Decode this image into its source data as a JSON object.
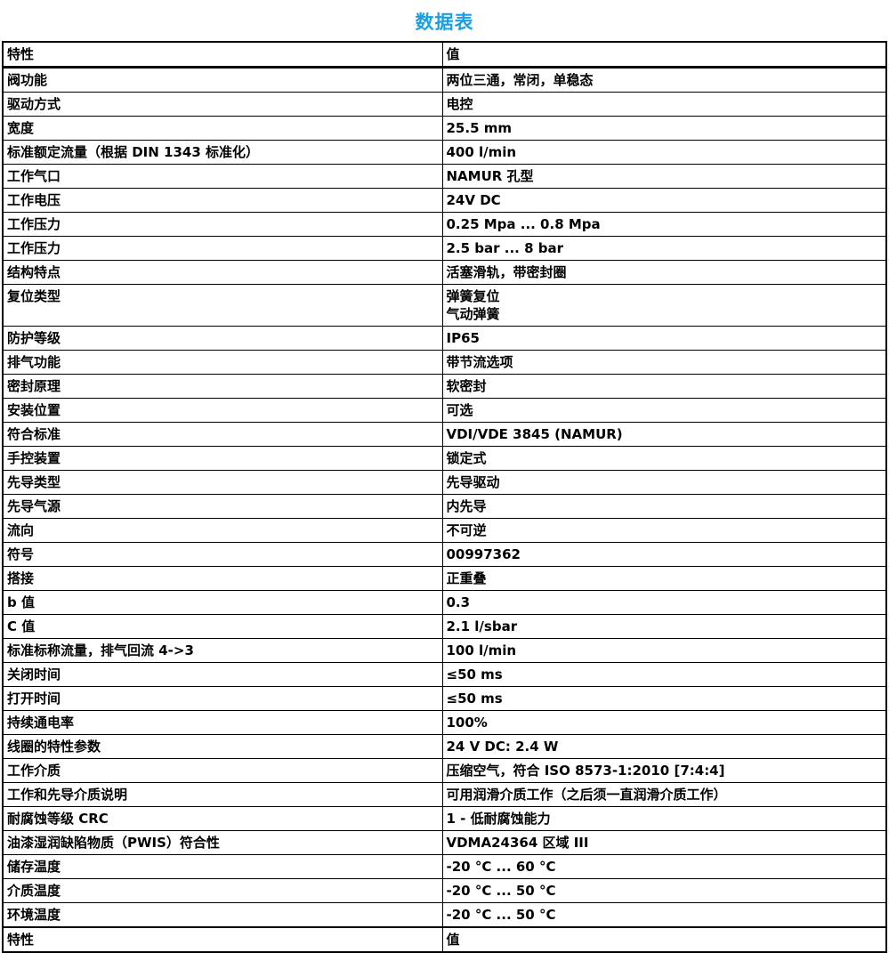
{
  "page": {
    "title": "数据表",
    "title_color": "#1A9EE5"
  },
  "table": {
    "header": {
      "property": "特性",
      "value": "值"
    },
    "footer": {
      "property": "特性",
      "value": "值"
    },
    "rows": [
      {
        "property": "阀功能",
        "value": "两位三通，常闭，单稳态"
      },
      {
        "property": "驱动方式",
        "value": "电控"
      },
      {
        "property": "宽度",
        "value": "25.5 mm"
      },
      {
        "property": "标准额定流量（根据 DIN 1343 标准化）",
        "value": "400 l/min"
      },
      {
        "property": "工作气口",
        "value": "NAMUR 孔型"
      },
      {
        "property": "工作电压",
        "value": "24V DC"
      },
      {
        "property": "工作压力",
        "value": "0.25 Mpa ... 0.8 Mpa"
      },
      {
        "property": "工作压力",
        "value": "2.5 bar ... 8 bar"
      },
      {
        "property": "结构特点",
        "value": "活塞滑轨，带密封圈"
      },
      {
        "property": "复位类型",
        "value": "弹簧复位\n气动弹簧"
      },
      {
        "property": "防护等级",
        "value": "IP65"
      },
      {
        "property": "排气功能",
        "value": "带节流选项"
      },
      {
        "property": "密封原理",
        "value": "软密封"
      },
      {
        "property": "安装位置",
        "value": "可选"
      },
      {
        "property": "符合标准",
        "value": "VDI/VDE 3845 (NAMUR)"
      },
      {
        "property": "手控装置",
        "value": "锁定式"
      },
      {
        "property": "先导类型",
        "value": "先导驱动"
      },
      {
        "property": "先导气源",
        "value": "内先导"
      },
      {
        "property": "流向",
        "value": "不可逆"
      },
      {
        "property": "符号",
        "value": "00997362"
      },
      {
        "property": "搭接",
        "value": "正重叠"
      },
      {
        "property": "b 值",
        "value": "0.3"
      },
      {
        "property": "C 值",
        "value": "2.1 l/sbar"
      },
      {
        "property": "标准标称流量，排气回流 4->3",
        "value": "100 l/min"
      },
      {
        "property": "关闭时间",
        "value": "≤50 ms"
      },
      {
        "property": "打开时间",
        "value": "≤50 ms"
      },
      {
        "property": "持续通电率",
        "value": "100%"
      },
      {
        "property": "线圈的特性参数",
        "value": "24 V DC: 2.4 W"
      },
      {
        "property": "工作介质",
        "value": "压缩空气，符合 ISO 8573-1:2010 [7:4:4]"
      },
      {
        "property": "工作和先导介质说明",
        "value": "可用润滑介质工作（之后须一直润滑介质工作）"
      },
      {
        "property": "耐腐蚀等级 CRC",
        "value": "1 - 低耐腐蚀能力"
      },
      {
        "property": "油漆湿润缺陷物质（PWIS）符合性",
        "value": "VDMA24364 区域 III"
      },
      {
        "property": "储存温度",
        "value": "-20 °C ... 60 °C"
      },
      {
        "property": "介质温度",
        "value": "-20 °C ... 50 °C"
      },
      {
        "property": "环境温度",
        "value": "-20 °C ... 50 °C"
      }
    ]
  }
}
